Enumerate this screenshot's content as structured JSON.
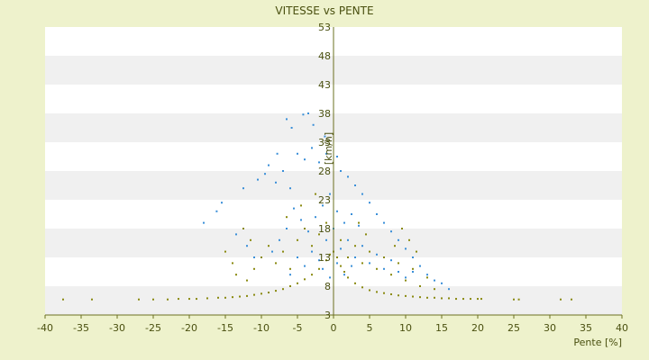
{
  "chart_data": {
    "type": "scatter",
    "title": "VITESSE vs PENTE",
    "xlabel": "Pente [%]",
    "ylabel": "[km/h]",
    "xlim": [
      -40,
      40
    ],
    "ylim": [
      3,
      53
    ],
    "xticks": [
      -40,
      -35,
      -30,
      -25,
      -20,
      -15,
      -10,
      -5,
      0,
      5,
      10,
      15,
      20,
      25,
      30,
      35,
      40
    ],
    "yticks": [
      3,
      8,
      13,
      18,
      23,
      28,
      33,
      38,
      43,
      48,
      53
    ],
    "grid": true,
    "legend": "none",
    "colors": {
      "background": "#eef2cc",
      "band_light": "#ffffff",
      "band_dark": "#f0f0f0",
      "axis": "#6b7020",
      "series_blue": "#3a8fd8",
      "series_olive": "#8a8a10"
    },
    "series": [
      {
        "color": "#3a8fd8",
        "points": [
          [
            -6.5,
            37
          ],
          [
            -5.8,
            35.5
          ],
          [
            -4.2,
            37.8
          ],
          [
            -3.5,
            38
          ],
          [
            -2.8,
            36
          ],
          [
            -1.2,
            34
          ],
          [
            -7.8,
            31
          ],
          [
            -9,
            29
          ],
          [
            -10.5,
            26.5
          ],
          [
            -12.5,
            25
          ],
          [
            -15.5,
            22.5
          ],
          [
            -16.2,
            21
          ],
          [
            -18,
            19
          ],
          [
            -13.5,
            17
          ],
          [
            -12,
            15
          ],
          [
            -11,
            13
          ],
          [
            -9.5,
            27.5
          ],
          [
            -8,
            26
          ],
          [
            -7,
            28
          ],
          [
            -6,
            25
          ],
          [
            -5,
            31
          ],
          [
            -4,
            30
          ],
          [
            -3,
            32
          ],
          [
            -2,
            29.5
          ],
          [
            -1,
            31
          ],
          [
            0.5,
            30.5
          ],
          [
            1,
            28
          ],
          [
            2,
            27
          ],
          [
            3,
            25.5
          ],
          [
            4,
            24
          ],
          [
            5,
            22.5
          ],
          [
            6,
            20.5
          ],
          [
            7,
            19
          ],
          [
            8,
            17.5
          ],
          [
            9,
            16
          ],
          [
            10,
            14.5
          ],
          [
            11,
            13
          ],
          [
            12,
            11.5
          ],
          [
            13,
            10
          ],
          [
            14,
            9
          ],
          [
            15,
            8.5
          ],
          [
            16,
            7.5
          ],
          [
            -2.5,
            20
          ],
          [
            -1.5,
            22
          ],
          [
            -0.5,
            24
          ],
          [
            0.5,
            21
          ],
          [
            1.5,
            19
          ],
          [
            2.5,
            20.5
          ],
          [
            3.5,
            18.5
          ],
          [
            -3.5,
            17.5
          ],
          [
            -4.5,
            19.5
          ],
          [
            -5.5,
            21.5
          ],
          [
            -6.5,
            18
          ],
          [
            -7.5,
            16
          ],
          [
            -8.5,
            14
          ],
          [
            -1,
            16
          ],
          [
            0,
            18
          ],
          [
            1,
            14.5
          ],
          [
            2,
            16
          ],
          [
            3,
            13
          ],
          [
            4,
            15
          ],
          [
            5,
            12
          ],
          [
            6,
            13.5
          ],
          [
            7,
            11
          ],
          [
            -2,
            12.5
          ],
          [
            -3,
            14
          ],
          [
            -4,
            11.5
          ],
          [
            -5,
            13
          ],
          [
            -6,
            10
          ],
          [
            1.5,
            10
          ],
          [
            2.5,
            11.5
          ],
          [
            0.5,
            12
          ],
          [
            -0.5,
            9.5
          ],
          [
            -1.5,
            11
          ],
          [
            8,
            12.5
          ],
          [
            9,
            10.5
          ],
          [
            10,
            9.5
          ],
          [
            11,
            10.5
          ]
        ]
      },
      {
        "color": "#8a8a10",
        "points": [
          [
            -37.5,
            5.7
          ],
          [
            -33.5,
            5.7
          ],
          [
            -27,
            5.7
          ],
          [
            -25,
            5.7
          ],
          [
            -23,
            5.7
          ],
          [
            -21.5,
            5.8
          ],
          [
            -20,
            5.8
          ],
          [
            -19,
            5.8
          ],
          [
            -17.5,
            5.9
          ],
          [
            -16,
            6
          ],
          [
            -15,
            6
          ],
          [
            -14,
            6.1
          ],
          [
            -13,
            6.2
          ],
          [
            -12,
            6.3
          ],
          [
            -11,
            6.5
          ],
          [
            -10,
            6.7
          ],
          [
            -9,
            6.9
          ],
          [
            -8,
            7.2
          ],
          [
            -7,
            7.5
          ],
          [
            -6,
            8
          ],
          [
            -5,
            8.5
          ],
          [
            -4,
            9.2
          ],
          [
            -3,
            10
          ],
          [
            -2,
            11
          ],
          [
            -1,
            12.5
          ],
          [
            -0.5,
            13.5
          ],
          [
            0.5,
            13
          ],
          [
            1,
            11.5
          ],
          [
            1.5,
            10.5
          ],
          [
            2,
            9.5
          ],
          [
            3,
            8.5
          ],
          [
            4,
            7.8
          ],
          [
            5,
            7.3
          ],
          [
            6,
            7
          ],
          [
            7,
            6.8
          ],
          [
            8,
            6.6
          ],
          [
            9,
            6.4
          ],
          [
            10,
            6.3
          ],
          [
            11,
            6.2
          ],
          [
            12,
            6.1
          ],
          [
            13,
            6
          ],
          [
            14,
            6
          ],
          [
            15,
            5.9
          ],
          [
            16,
            5.9
          ],
          [
            17,
            5.8
          ],
          [
            18,
            5.8
          ],
          [
            19,
            5.8
          ],
          [
            20,
            5.8
          ],
          [
            20.5,
            5.8
          ],
          [
            25,
            5.7
          ],
          [
            25.7,
            5.7
          ],
          [
            31.5,
            5.7
          ],
          [
            33,
            5.7
          ],
          [
            -15,
            14
          ],
          [
            -14,
            12
          ],
          [
            -13.5,
            10
          ],
          [
            -12,
            9
          ],
          [
            -11,
            11
          ],
          [
            -10,
            13
          ],
          [
            -9,
            15
          ],
          [
            -8,
            12
          ],
          [
            -7,
            14
          ],
          [
            -6,
            11
          ],
          [
            -5,
            16
          ],
          [
            -4,
            18
          ],
          [
            -3,
            15
          ],
          [
            -2,
            17
          ],
          [
            -1,
            19
          ],
          [
            0,
            14
          ],
          [
            1,
            16
          ],
          [
            2,
            13
          ],
          [
            3,
            15
          ],
          [
            4,
            12
          ],
          [
            5,
            14
          ],
          [
            6,
            11
          ],
          [
            7,
            13
          ],
          [
            8,
            10
          ],
          [
            9,
            12
          ],
          [
            10,
            9
          ],
          [
            11,
            11
          ],
          [
            12,
            8
          ],
          [
            13,
            9.5
          ],
          [
            14,
            7.5
          ],
          [
            -12.5,
            18
          ],
          [
            -11.5,
            16
          ],
          [
            -6.5,
            20
          ],
          [
            -4.5,
            22
          ],
          [
            -2.5,
            24
          ],
          [
            3.5,
            19
          ],
          [
            4.5,
            17
          ],
          [
            8.5,
            15
          ],
          [
            9.5,
            18
          ],
          [
            10.5,
            16
          ],
          [
            11.5,
            14
          ]
        ]
      }
    ]
  }
}
